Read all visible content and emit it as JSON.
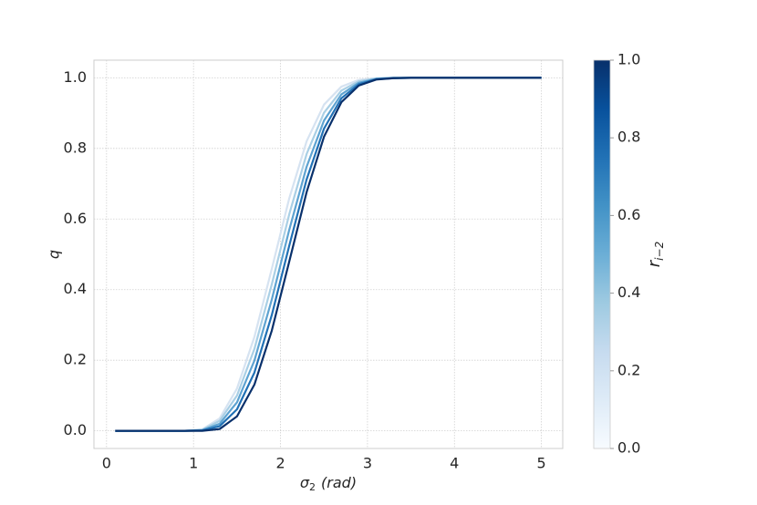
{
  "chart_data": {
    "type": "line",
    "xlabel": {
      "symbol": "σ",
      "subscript": "2",
      "unit": "(rad)"
    },
    "ylabel": "q",
    "x": [
      0.1,
      0.3,
      0.5,
      0.7,
      0.9,
      1.1,
      1.3,
      1.5,
      1.7,
      1.9,
      2.1,
      2.3,
      2.5,
      2.7,
      2.9,
      3.1,
      3.3,
      3.5,
      3.7,
      3.9,
      4.1,
      4.3,
      4.5,
      4.7,
      4.9,
      5.0
    ],
    "series": [
      {
        "color": "#d6e3f1",
        "values": [
          0,
          0,
          0,
          0,
          0,
          0.004,
          0.035,
          0.12,
          0.266,
          0.459,
          0.658,
          0.82,
          0.924,
          0.975,
          0.994,
          0.999,
          1.0,
          1.0,
          1.0,
          1.0,
          1.0,
          1.0,
          1.0,
          1.0,
          1.0,
          1.0
        ]
      },
      {
        "color": "#a9cfe5",
        "values": [
          0,
          0,
          0,
          0,
          0,
          0.003,
          0.028,
          0.1,
          0.232,
          0.415,
          0.613,
          0.784,
          0.901,
          0.964,
          0.99,
          0.998,
          1.0,
          1.0,
          1.0,
          1.0,
          1.0,
          1.0,
          1.0,
          1.0,
          1.0,
          1.0
        ]
      },
      {
        "color": "#5ea3d1",
        "values": [
          0,
          0,
          0,
          0,
          0,
          0.002,
          0.02,
          0.081,
          0.199,
          0.372,
          0.569,
          0.748,
          0.879,
          0.953,
          0.986,
          0.997,
          1.0,
          1.0,
          1.0,
          1.0,
          1.0,
          1.0,
          1.0,
          1.0,
          1.0,
          1.0
        ]
      },
      {
        "color": "#2171b5",
        "values": [
          0,
          0,
          0,
          0,
          0,
          0.001,
          0.013,
          0.061,
          0.165,
          0.328,
          0.524,
          0.712,
          0.856,
          0.942,
          0.982,
          0.996,
          0.999,
          1.0,
          1.0,
          1.0,
          1.0,
          1.0,
          1.0,
          1.0,
          1.0,
          1.0
        ]
      },
      {
        "color": "#08306b",
        "values": [
          0,
          0,
          0,
          0,
          0,
          0,
          0.005,
          0.041,
          0.131,
          0.284,
          0.479,
          0.676,
          0.833,
          0.931,
          0.978,
          0.995,
          0.999,
          1.0,
          1.0,
          1.0,
          1.0,
          1.0,
          1.0,
          1.0,
          1.0,
          1.0
        ]
      }
    ],
    "xlim": [
      -0.145,
      5.245
    ],
    "ylim": [
      -0.05,
      1.05
    ],
    "xticks": [
      0,
      1,
      2,
      3,
      4,
      5
    ],
    "yticks": [
      {
        "value": 0,
        "label": "0.0"
      },
      {
        "value": 0.2,
        "label": "0.2"
      },
      {
        "value": 0.4,
        "label": "0.4"
      },
      {
        "value": 0.6,
        "label": "0.6"
      },
      {
        "value": 0.8,
        "label": "0.8"
      },
      {
        "value": 1,
        "label": "1.0"
      }
    ],
    "grid": true,
    "colorbar": {
      "label": {
        "symbol": "r",
        "subscript": "i−2"
      },
      "lim": [
        0,
        1
      ],
      "ticks": [
        {
          "value": 0,
          "label": "0.0"
        },
        {
          "value": 0.2,
          "label": "0.2"
        },
        {
          "value": 0.4,
          "label": "0.4"
        },
        {
          "value": 0.6,
          "label": "0.6"
        },
        {
          "value": 0.8,
          "label": "0.8"
        },
        {
          "value": 1,
          "label": "1.0"
        }
      ],
      "colormap": [
        "#f7fbff",
        "#deebf7",
        "#c6dbef",
        "#9ecae1",
        "#6baed6",
        "#4292c6",
        "#2171b5",
        "#08519c",
        "#08306b"
      ]
    }
  }
}
